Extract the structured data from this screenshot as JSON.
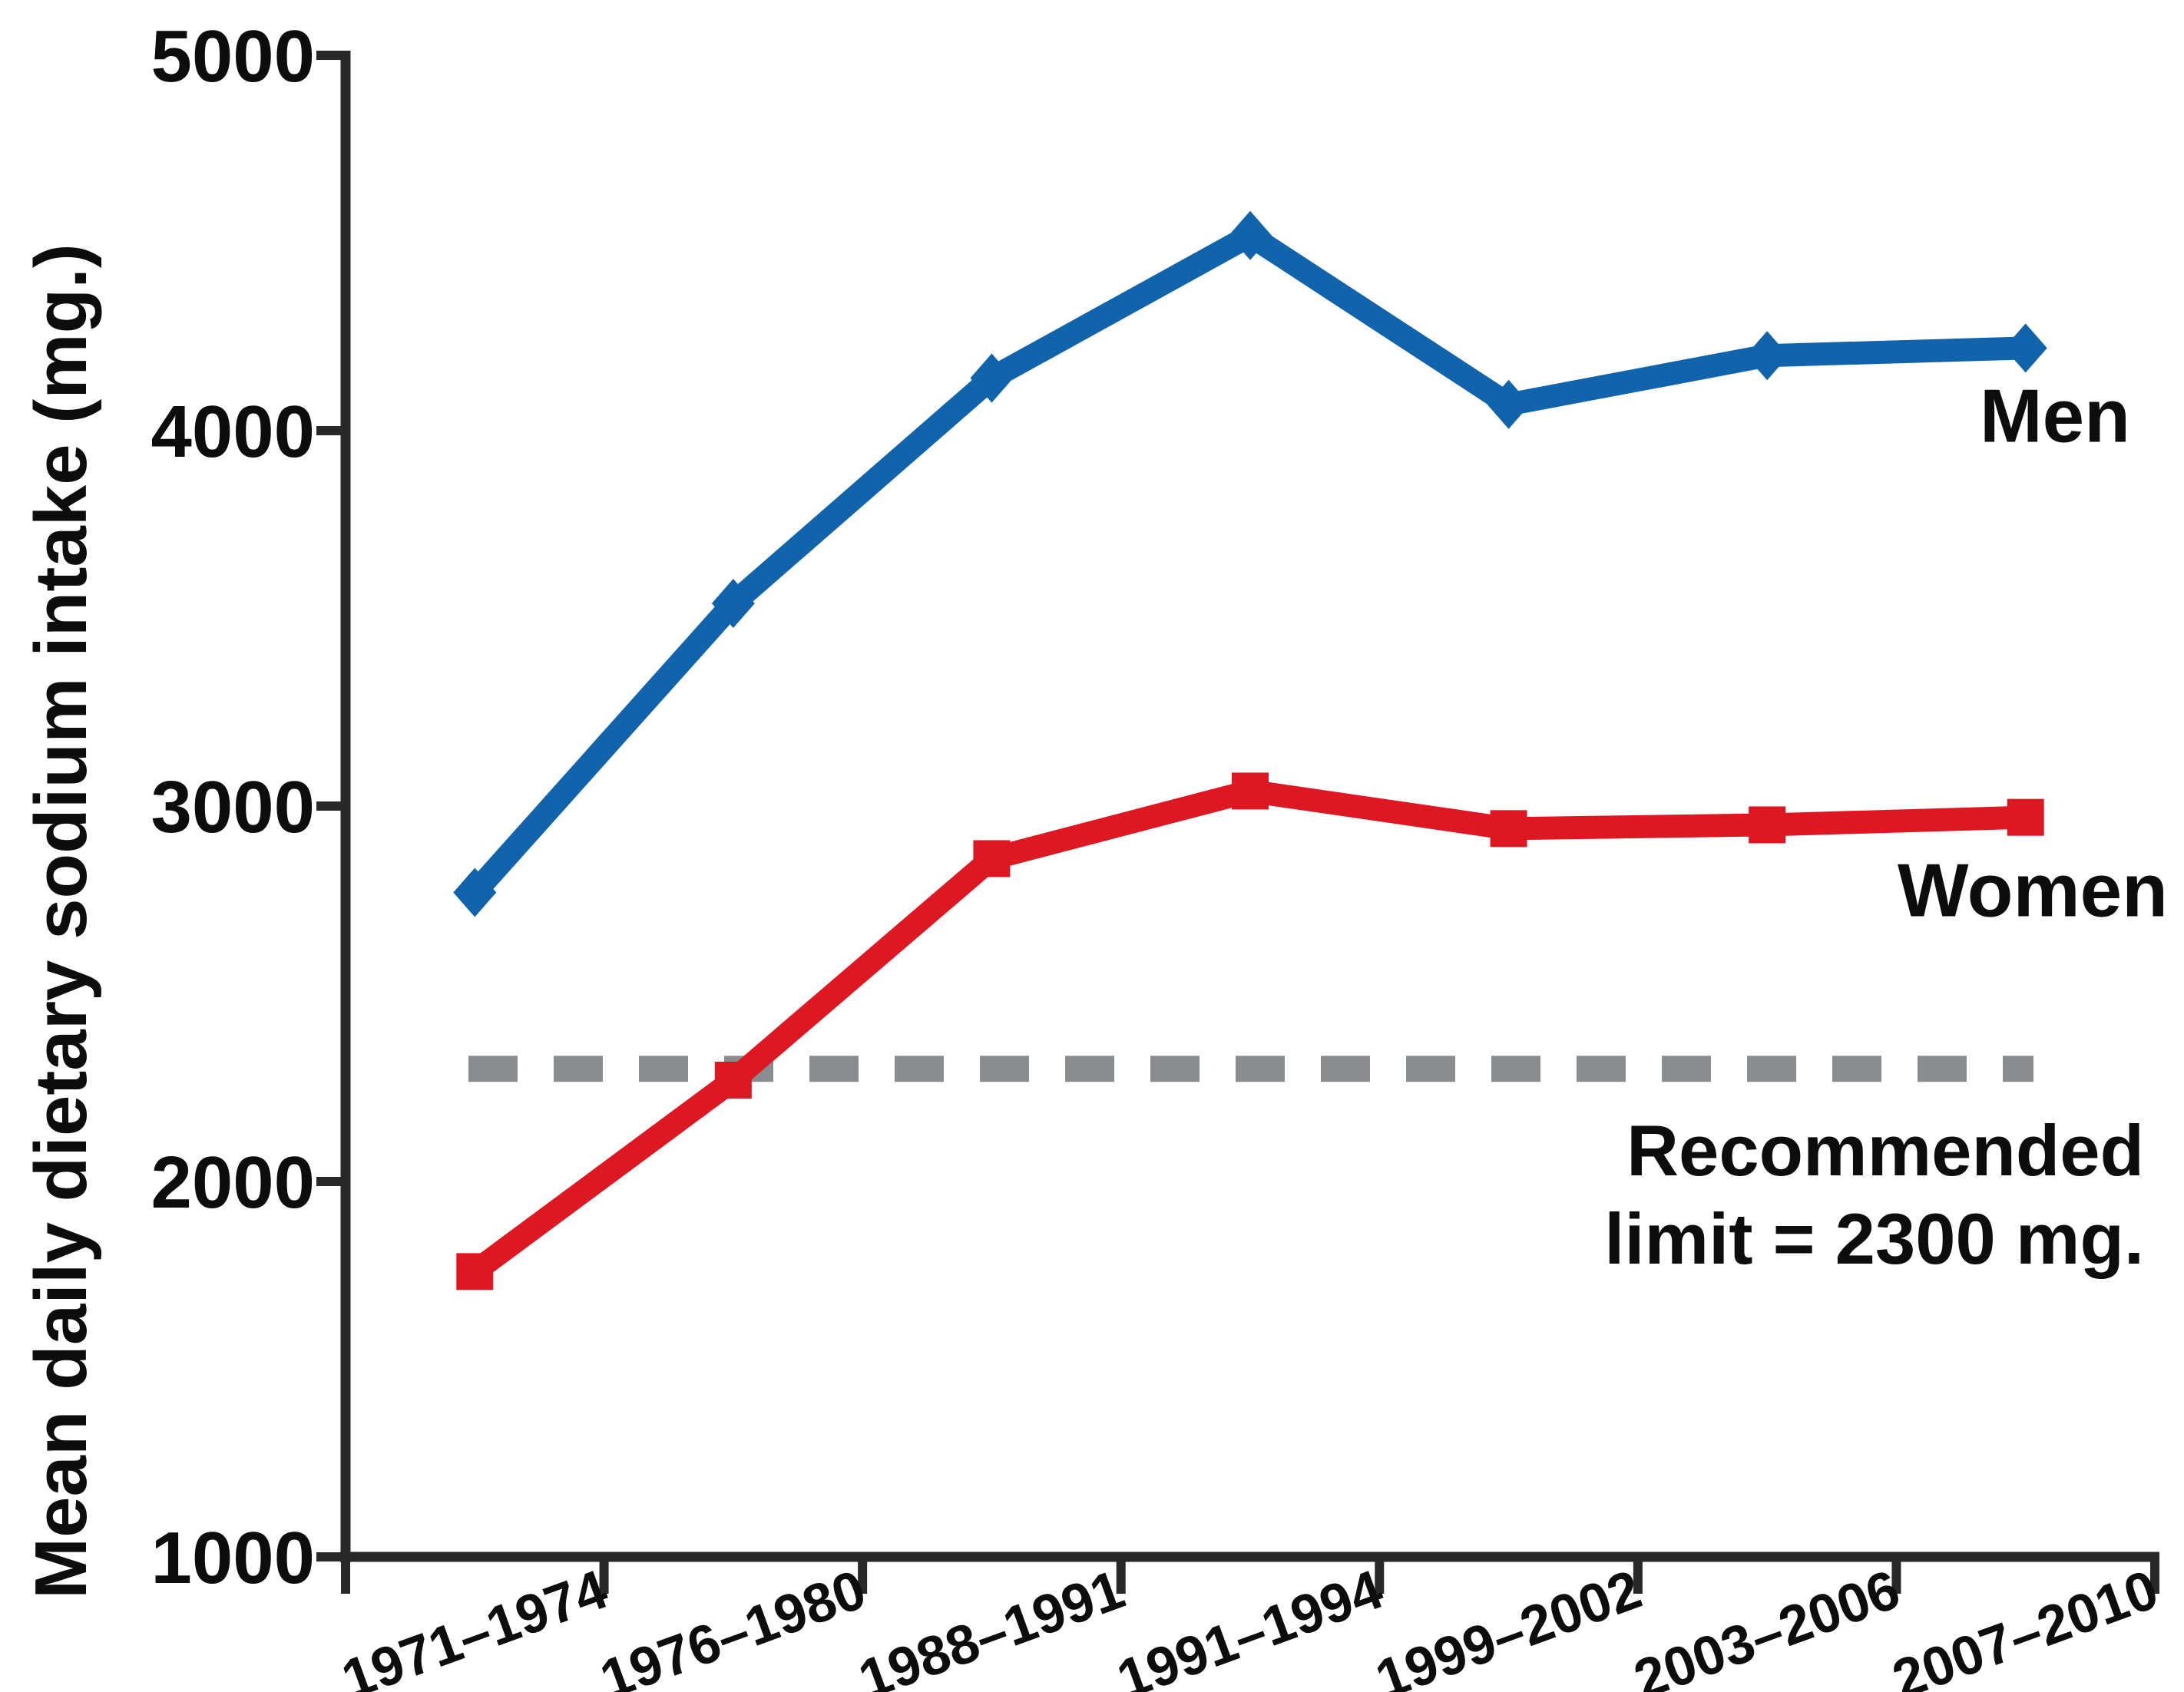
{
  "chart_data": {
    "type": "line",
    "title": "",
    "xlabel": "",
    "ylabel": "Mean daily dietary sodium intake (mg.)",
    "ylim": [
      1000,
      5000
    ],
    "yticks": [
      1000,
      2000,
      3000,
      4000,
      5000
    ],
    "grid": false,
    "legend_position": "inline-right-of-lines",
    "categories": [
      "1971–1974",
      "1976–1980",
      "1988–1991",
      "1991–1994",
      "1999–2002",
      "2003–2006",
      "2007–2010"
    ],
    "series": [
      {
        "name": "Men",
        "color": "#1163ab",
        "marker": "diamond",
        "values": [
          2770,
          3540,
          4140,
          4520,
          4070,
          4200,
          4220
        ]
      },
      {
        "name": "Women",
        "color": "#de1823",
        "marker": "square",
        "values": [
          1760,
          2270,
          2860,
          3040,
          2940,
          2950,
          2970
        ]
      }
    ],
    "reference_line": {
      "value": 2300,
      "style": "dashed",
      "color": "#8a8d90",
      "label_line1": "Recommended",
      "label_line2": "limit = 2300 mg."
    },
    "appearance": {
      "axis_color": "#282828",
      "text_color": "#0d0d0d"
    }
  }
}
